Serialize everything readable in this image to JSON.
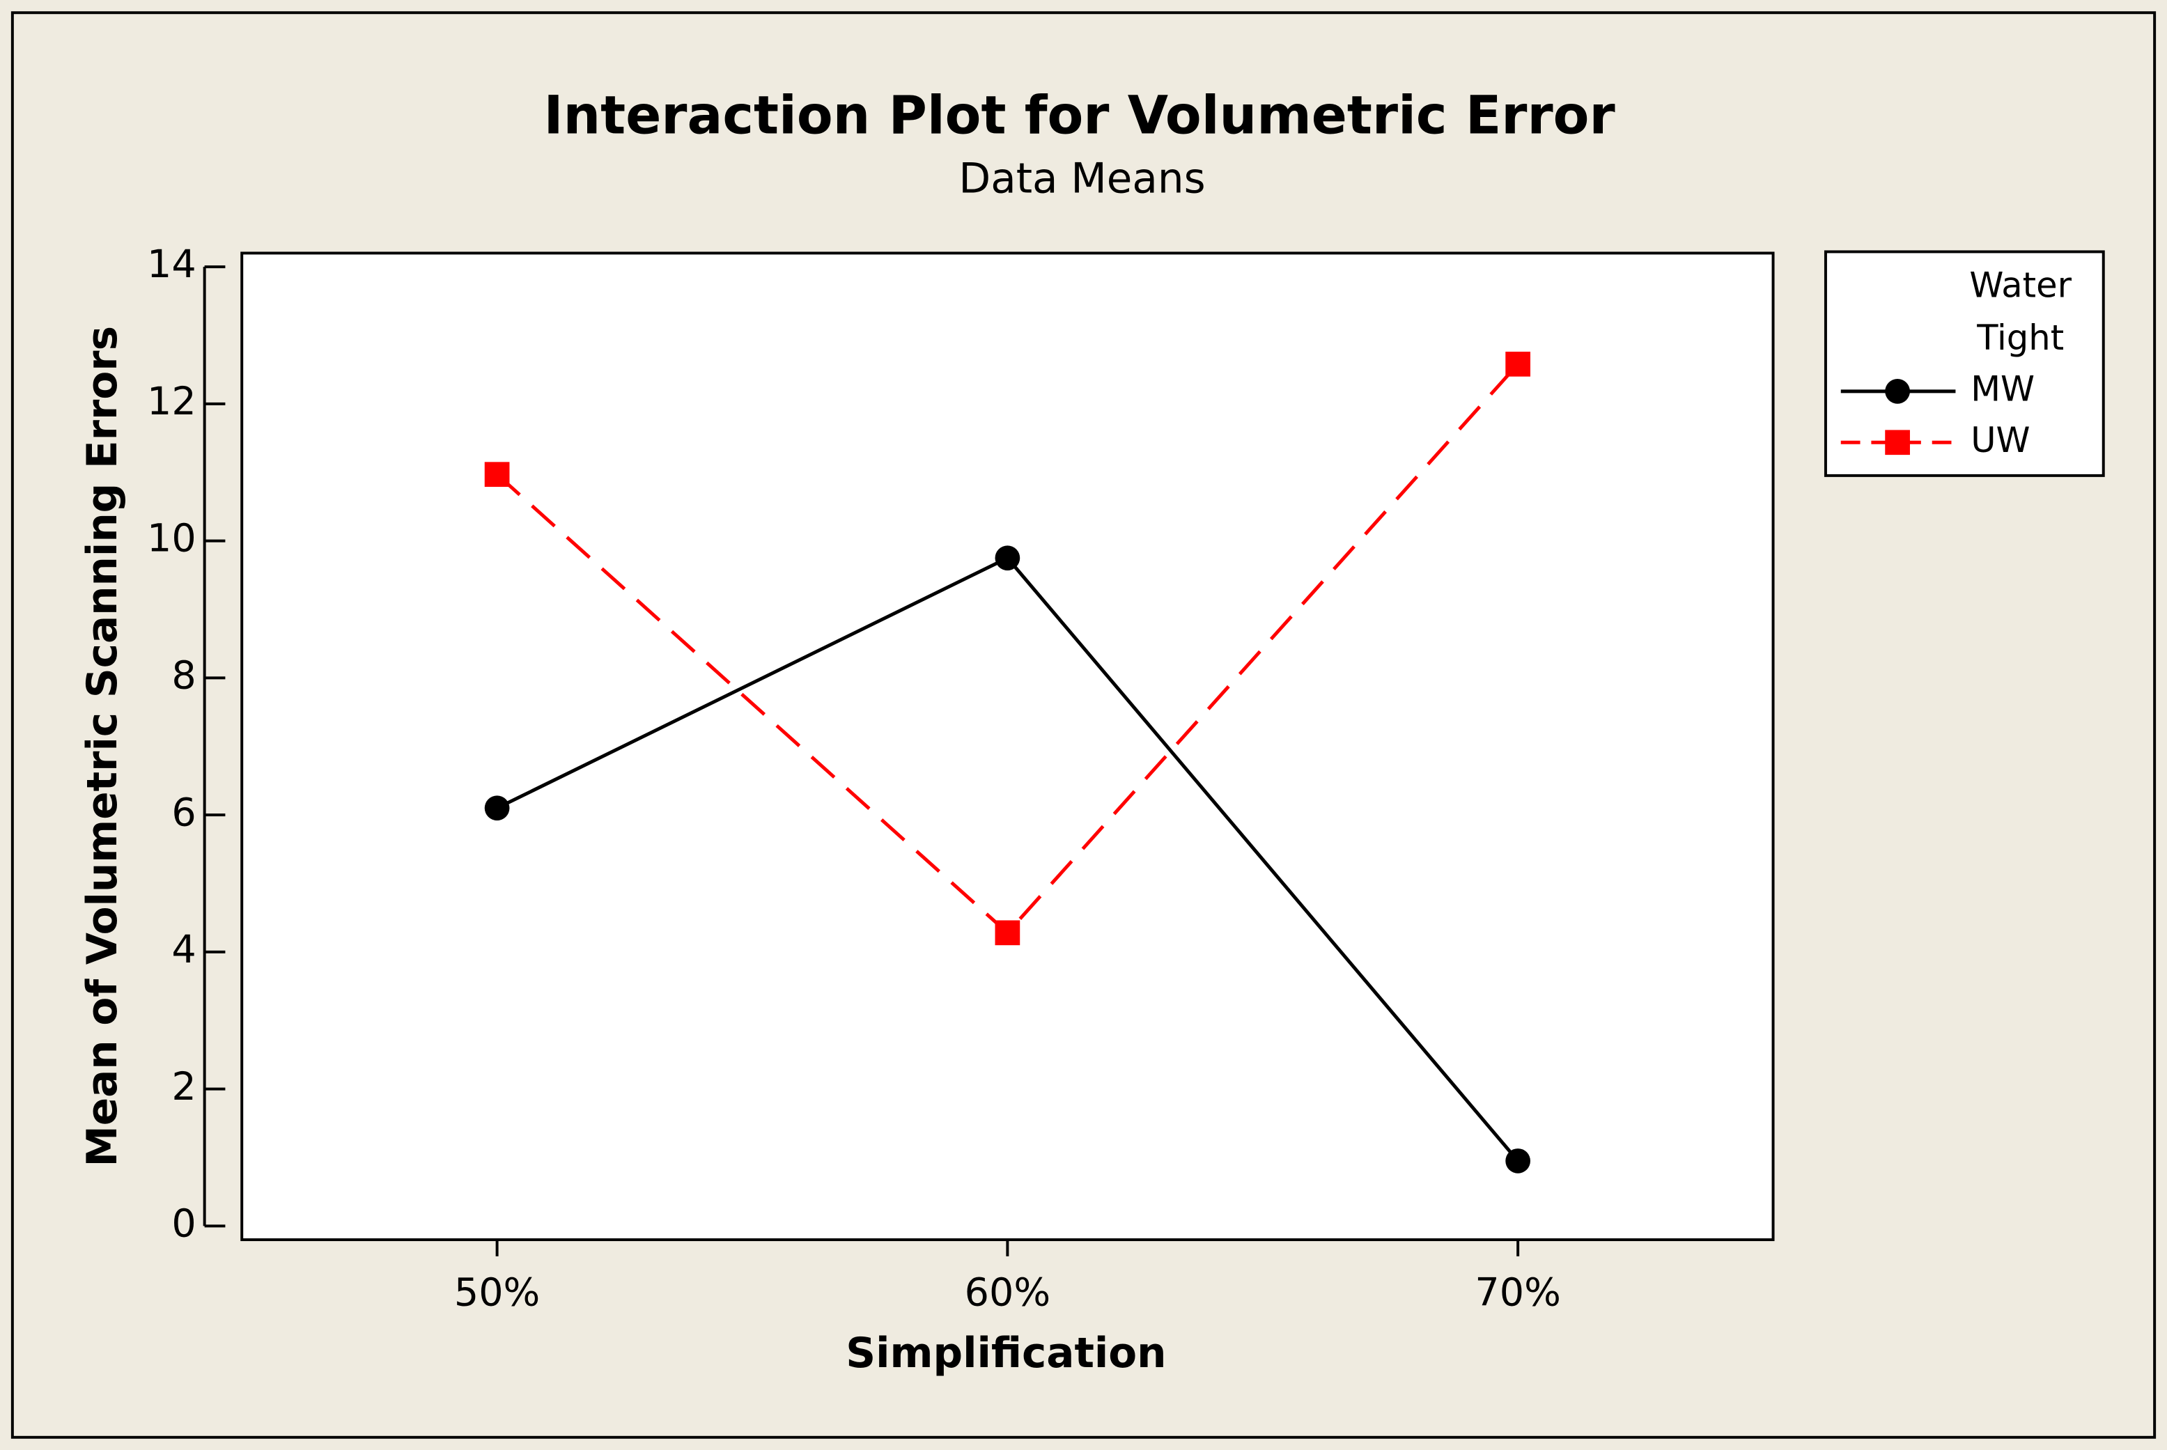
{
  "chart_data": {
    "type": "line",
    "title": "Interaction Plot for Volumetric Error",
    "subtitle": "Data Means",
    "x_label": "Simplification",
    "y_label": "Mean of  Volumetric Scanning Errors",
    "categories": [
      "50%",
      "60%",
      "70%"
    ],
    "legend_title": [
      "Water",
      "Tight"
    ],
    "series": [
      {
        "name": "MW",
        "color": "#000000",
        "marker": "circle",
        "dash": "solid",
        "values": [
          6.1,
          9.75,
          0.95
        ]
      },
      {
        "name": "UW",
        "color": "#ff0000",
        "marker": "square",
        "dash": "dashed",
        "values": [
          10.97,
          4.28,
          12.58
        ]
      }
    ],
    "ylim": [
      -0.2,
      14.2
    ],
    "yticks": [
      0,
      2,
      4,
      6,
      8,
      10,
      12,
      14
    ],
    "legend": "right"
  }
}
